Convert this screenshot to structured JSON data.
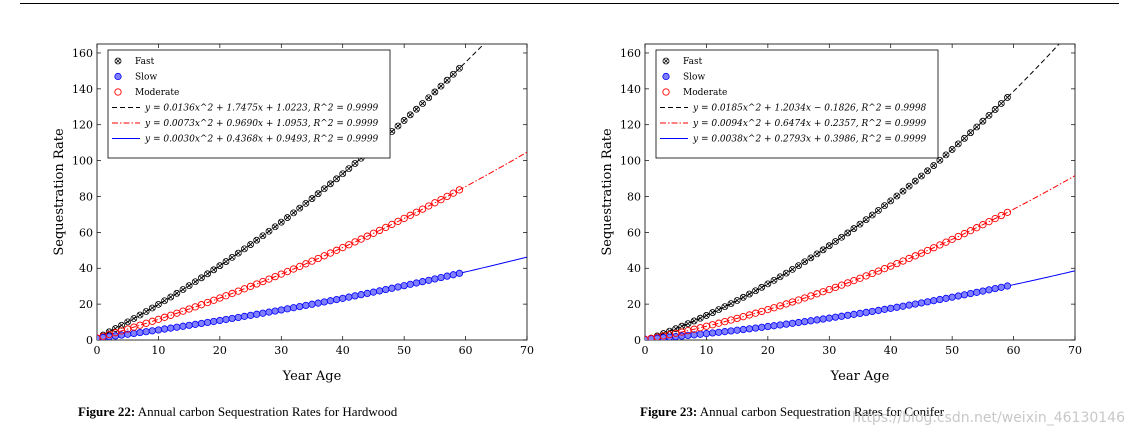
{
  "chart_data": [
    {
      "type": "scatter",
      "xlabel": "Year Age",
      "ylabel": "Sequestration Rate",
      "xlim": [
        0,
        70
      ],
      "ylim": [
        0,
        165
      ],
      "xticks": [
        0,
        10,
        20,
        30,
        40,
        50,
        60,
        70
      ],
      "yticks": [
        0,
        20,
        40,
        60,
        80,
        100,
        120,
        140,
        160
      ],
      "legend_position": "top-left",
      "series": [
        {
          "name": "Fast",
          "marker": "otimes",
          "color": "#000000",
          "x_range": [
            0,
            59
          ],
          "coef": [
            0.0136,
            1.7475,
            1.0223
          ]
        },
        {
          "name": "Slow",
          "marker": "filled-circle",
          "color": "#0000ff",
          "fill": "#8080ff",
          "x_range": [
            0,
            59
          ],
          "coef": [
            0.003,
            0.4368,
            0.9493
          ]
        },
        {
          "name": "Moderate",
          "marker": "open-circle",
          "color": "#ff0000",
          "x_range": [
            0,
            59
          ],
          "coef": [
            0.0073,
            0.969,
            1.0953
          ]
        }
      ],
      "fits": [
        {
          "label": "y = 0.0136x^2 + 1.7475x + 1.0223, R^2 = 0.9999",
          "color": "#000000",
          "dash": "dashed",
          "coef": [
            0.0136,
            1.7475,
            1.0223
          ],
          "x_range": [
            0,
            70
          ]
        },
        {
          "label": "y = 0.0073x^2 + 0.9690x + 1.0953, R^2 = 0.9999",
          "color": "#ff0000",
          "dash": "dashdot",
          "coef": [
            0.0073,
            0.969,
            1.0953
          ],
          "x_range": [
            0,
            70
          ]
        },
        {
          "label": "y = 0.0030x^2 + 0.4368x + 0.9493, R^2 = 0.9999",
          "color": "#0000ff",
          "dash": "solid",
          "coef": [
            0.003,
            0.4368,
            0.9493
          ],
          "x_range": [
            0,
            70
          ]
        }
      ],
      "caption_label": "Figure 22:",
      "caption_text": "Annual carbon Sequestration Rates for Hardwood"
    },
    {
      "type": "scatter",
      "xlabel": "Year Age",
      "ylabel": "Sequestration Rate",
      "xlim": [
        0,
        70
      ],
      "ylim": [
        0,
        165
      ],
      "xticks": [
        0,
        10,
        20,
        30,
        40,
        50,
        60,
        70
      ],
      "yticks": [
        0,
        20,
        40,
        60,
        80,
        100,
        120,
        140,
        160
      ],
      "legend_position": "top-left",
      "series": [
        {
          "name": "Fast",
          "marker": "otimes",
          "color": "#000000",
          "x_range": [
            0,
            59
          ],
          "coef": [
            0.0185,
            1.2034,
            -0.1826
          ]
        },
        {
          "name": "Slow",
          "marker": "filled-circle",
          "color": "#0000ff",
          "fill": "#8080ff",
          "x_range": [
            0,
            59
          ],
          "coef": [
            0.0038,
            0.2793,
            0.3986
          ]
        },
        {
          "name": "Moderate",
          "marker": "open-circle",
          "color": "#ff0000",
          "x_range": [
            0,
            59
          ],
          "coef": [
            0.0094,
            0.6474,
            0.2357
          ]
        }
      ],
      "fits": [
        {
          "label": "y = 0.0185x^2 + 1.2034x − 0.1826, R^2 = 0.9998",
          "color": "#000000",
          "dash": "dashed",
          "coef": [
            0.0185,
            1.2034,
            -0.1826
          ],
          "x_range": [
            0,
            70
          ]
        },
        {
          "label": "y = 0.0094x^2 + 0.6474x + 0.2357, R^2 = 0.9999",
          "color": "#ff0000",
          "dash": "dashdot",
          "coef": [
            0.0094,
            0.6474,
            0.2357
          ],
          "x_range": [
            0,
            70
          ]
        },
        {
          "label": "y = 0.0038x^2 + 0.2793x + 0.3986, R^2 = 0.9999",
          "color": "#0000ff",
          "dash": "solid",
          "coef": [
            0.0038,
            0.2793,
            0.3986
          ],
          "x_range": [
            0,
            70
          ]
        }
      ],
      "caption_label": "Figure 23:",
      "caption_text": "Annual carbon Sequestration Rates for Conifer"
    }
  ],
  "watermark": "https://blog.csdn.net/weixin_46130146"
}
